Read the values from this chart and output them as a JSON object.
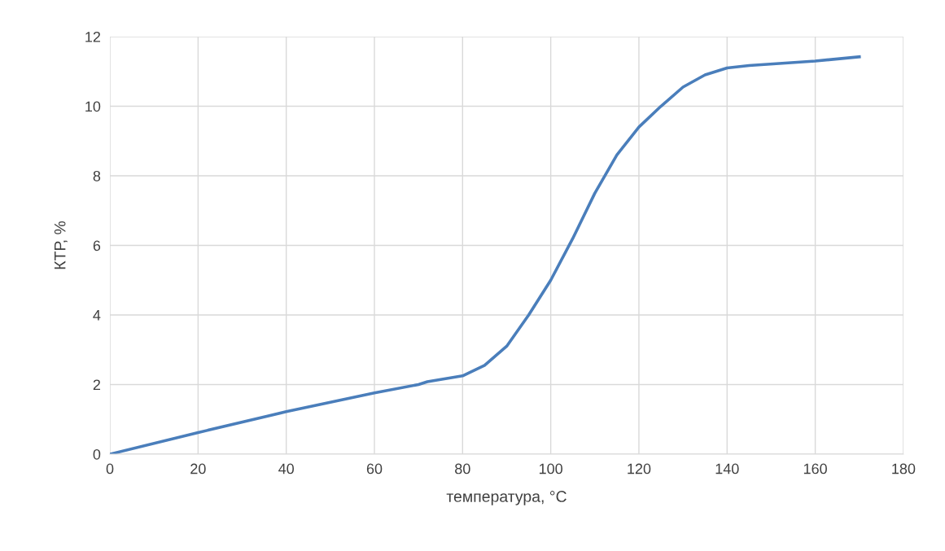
{
  "chart_data": {
    "type": "line",
    "xlabel": "температура, °C",
    "ylabel": "КТР, %",
    "x": [
      0,
      20,
      40,
      60,
      70,
      72,
      80,
      85,
      90,
      95,
      100,
      105,
      110,
      115,
      120,
      125,
      130,
      135,
      140,
      145,
      160,
      170
    ],
    "series": [
      {
        "color": "#4a7ebb",
        "values": [
          0,
          0.62,
          1.22,
          1.76,
          2.0,
          2.08,
          2.25,
          2.55,
          3.1,
          4.0,
          5.0,
          6.2,
          7.5,
          8.6,
          9.4,
          10.0,
          10.55,
          10.9,
          11.1,
          11.17,
          11.3,
          11.42
        ]
      }
    ],
    "xlim": [
      0,
      180
    ],
    "xticks": [
      0,
      20,
      40,
      60,
      80,
      100,
      120,
      140,
      160,
      180
    ],
    "ylim": [
      0,
      12
    ],
    "yticks": [
      0,
      2,
      4,
      6,
      8,
      10,
      12
    ],
    "grid": true,
    "marker": "none",
    "line_style": "solid"
  }
}
